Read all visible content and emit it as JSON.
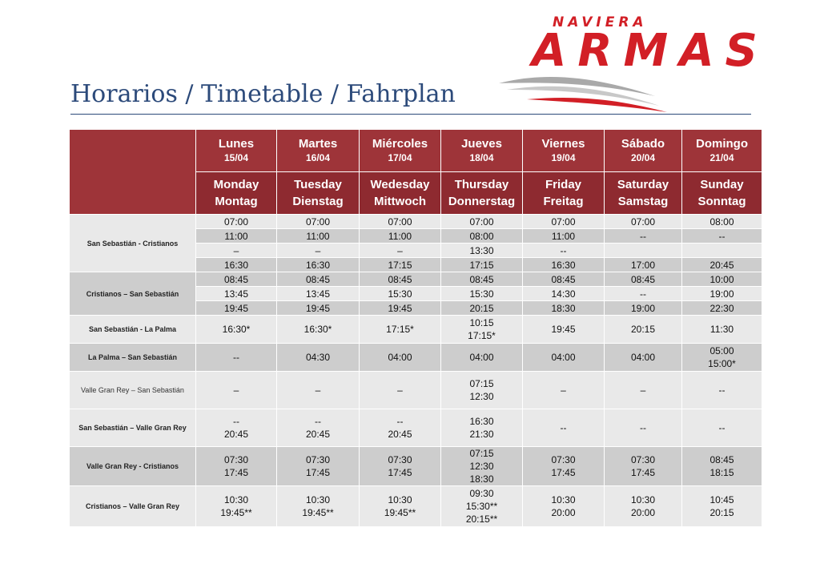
{
  "brand": {
    "top": "NAVIERA",
    "main": "ARMAS"
  },
  "title": "Horarios / Timetable / Fahrplan",
  "colors": {
    "brand_red": "#d21f26",
    "header_red": "#9e3439",
    "title_blue": "#2c4a7a"
  },
  "days": [
    {
      "es": "Lunes",
      "date": "15/04",
      "en": "Monday",
      "de": "Montag"
    },
    {
      "es": "Martes",
      "date": "16/04",
      "en": "Tuesday",
      "de": "Dienstag"
    },
    {
      "es": "Miércoles",
      "date": "17/04",
      "en": "Wedesday",
      "de": "Mittwoch"
    },
    {
      "es": "Jueves",
      "date": "18/04",
      "en": "Thursday",
      "de": "Donnerstag"
    },
    {
      "es": "Viernes",
      "date": "19/04",
      "en": "Friday",
      "de": "Freitag"
    },
    {
      "es": "Sábado",
      "date": "20/04",
      "en": "Saturday",
      "de": "Samstag"
    },
    {
      "es": "Domingo",
      "date": "21/04",
      "en": "Sunday",
      "de": "Sonntag"
    }
  ],
  "routes": [
    {
      "name": "San Sebastián - Cristianos",
      "rows": [
        [
          "07:00",
          "07:00",
          "07:00",
          "07:00",
          "07:00",
          "07:00",
          "08:00"
        ],
        [
          "11:00",
          "11:00",
          "11:00",
          "08:00",
          "11:00",
          "--",
          "--"
        ],
        [
          "–",
          "–",
          "–",
          "13:30",
          "--",
          "",
          ""
        ],
        [
          "16:30",
          "16:30",
          "17:15",
          "17:15",
          "16:30",
          "17:00",
          "20:45"
        ]
      ]
    },
    {
      "name": "Cristianos – San Sebastián",
      "rows": [
        [
          "08:45",
          "08:45",
          "08:45",
          "08:45",
          "08:45",
          "08:45",
          "10:00"
        ],
        [
          "13:45",
          "13:45",
          "15:30",
          "15:30",
          "14:30",
          "--",
          "19:00"
        ],
        [
          "19:45",
          "19:45",
          "19:45",
          "20:15",
          "18:30",
          "19:00",
          "22:30"
        ]
      ]
    },
    {
      "name": "San Sebastián - La Palma",
      "cells": [
        [
          "16:30*"
        ],
        [
          "16:30*"
        ],
        [
          "17:15*"
        ],
        [
          "10:15",
          "17:15*"
        ],
        [
          "19:45"
        ],
        [
          "20:15"
        ],
        [
          "11:30"
        ]
      ]
    },
    {
      "name": "La Palma – San Sebastián",
      "cells": [
        [
          "--"
        ],
        [
          "04:30"
        ],
        [
          "04:00"
        ],
        [
          "04:00"
        ],
        [
          "04:00"
        ],
        [
          "04:00"
        ],
        [
          "05:00",
          "15:00*"
        ]
      ]
    },
    {
      "name": "Valle Gran Rey – San Sebastián",
      "cells": [
        [
          "–"
        ],
        [
          "–"
        ],
        [
          "–"
        ],
        [
          "07:15",
          "12:30"
        ],
        [
          "–"
        ],
        [
          "–"
        ],
        [
          "--"
        ]
      ]
    },
    {
      "name": "San Sebastián – Valle Gran Rey",
      "cells": [
        [
          "--",
          "20:45"
        ],
        [
          "--",
          "20:45"
        ],
        [
          "--",
          "20:45"
        ],
        [
          "16:30",
          "21:30"
        ],
        [
          "--"
        ],
        [
          "--"
        ],
        [
          "--"
        ]
      ]
    },
    {
      "name": "Valle Gran Rey - Cristianos",
      "cells": [
        [
          "07:30",
          "17:45"
        ],
        [
          "07:30",
          "17:45"
        ],
        [
          "07:30",
          "17:45"
        ],
        [
          "07:15",
          "12:30",
          "18:30"
        ],
        [
          "07:30",
          "17:45"
        ],
        [
          "07:30",
          "17:45"
        ],
        [
          "08:45",
          "18:15"
        ]
      ]
    },
    {
      "name": "Cristianos – Valle Gran Rey",
      "cells": [
        [
          "10:30",
          "19:45**"
        ],
        [
          "10:30",
          "19:45**"
        ],
        [
          "10:30",
          "19:45**"
        ],
        [
          "09:30",
          "15:30**",
          "20:15**"
        ],
        [
          "10:30",
          "20:00"
        ],
        [
          "10:30",
          "20:00"
        ],
        [
          "10:45",
          "20:15"
        ]
      ]
    }
  ]
}
